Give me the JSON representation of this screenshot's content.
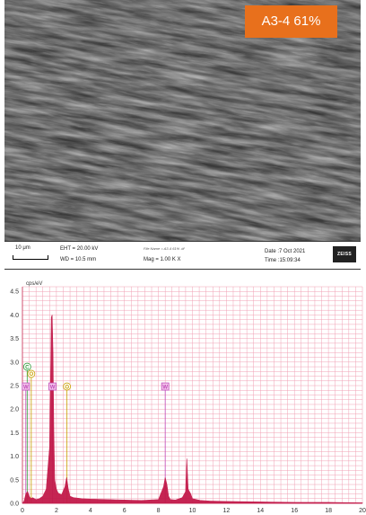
{
  "sample_label": "A3-4 61%",
  "info_bar": {
    "scale_bar": "10 μm",
    "eht": "EHT = 20.00 kV",
    "wd": "WD = 10.5 mm",
    "signal": "File Name = A3-4 61% .tif",
    "mag": "Mag =  1.00 K X",
    "date": "Date :7 Oct 2021",
    "time": "Time :15:09:34",
    "logo": "ZEISS"
  },
  "chart_data": {
    "type": "line",
    "title": "",
    "ylabel": "cps/eV",
    "xlabel": "",
    "xlim": [
      0,
      20
    ],
    "ylim": [
      0,
      4.6
    ],
    "grid": true,
    "xticks": [
      0,
      2,
      4,
      6,
      8,
      10,
      12,
      14,
      16,
      18,
      20
    ],
    "yticks": [
      0.0,
      0.5,
      1.0,
      1.5,
      2.0,
      2.5,
      3.0,
      3.5,
      4.0,
      4.5
    ],
    "spectrum": {
      "x": [
        0.0,
        0.1,
        0.2,
        0.3,
        0.4,
        0.5,
        0.6,
        0.8,
        1.0,
        1.2,
        1.4,
        1.6,
        1.7,
        1.75,
        1.8,
        1.85,
        1.9,
        2.0,
        2.1,
        2.3,
        2.5,
        2.6,
        2.7,
        2.8,
        3.0,
        3.5,
        4.0,
        5.0,
        6.0,
        7.0,
        8.0,
        8.3,
        8.4,
        8.5,
        8.6,
        8.7,
        9.0,
        9.4,
        9.6,
        9.67,
        9.75,
        9.9,
        10.0,
        10.5,
        11.0,
        12.0,
        14.0,
        16.0,
        18.0,
        20.0
      ],
      "y": [
        0.0,
        0.05,
        0.2,
        0.25,
        0.15,
        0.1,
        0.12,
        0.08,
        0.1,
        0.15,
        0.3,
        1.2,
        3.95,
        4.0,
        3.2,
        1.5,
        0.5,
        0.3,
        0.22,
        0.18,
        0.35,
        0.55,
        0.3,
        0.15,
        0.12,
        0.1,
        0.09,
        0.08,
        0.07,
        0.06,
        0.08,
        0.35,
        0.55,
        0.4,
        0.15,
        0.08,
        0.07,
        0.12,
        0.25,
        0.95,
        0.3,
        0.2,
        0.1,
        0.06,
        0.05,
        0.04,
        0.03,
        0.02,
        0.02,
        0.01
      ]
    },
    "element_markers": [
      {
        "symbol": "C",
        "x": 0.28,
        "y": 2.9,
        "color": "#2e9e3a"
      },
      {
        "symbol": "O",
        "x": 0.52,
        "y": 2.75,
        "color": "#c8a000"
      },
      {
        "symbol": "W",
        "x": 0.2,
        "y": 2.48,
        "color": "#c04ab8"
      },
      {
        "symbol": "W",
        "x": 1.77,
        "y": 2.48,
        "color": "#c04ab8"
      },
      {
        "symbol": "O",
        "x": 2.62,
        "y": 2.48,
        "color": "#c8a000"
      },
      {
        "symbol": "W",
        "x": 8.4,
        "y": 2.48,
        "color": "#c04ab8"
      }
    ],
    "colors": {
      "grid": "#f0a0b4",
      "spectrum_fill": "#c21a4a",
      "axes": "#d25070",
      "tick_text": "#333333"
    }
  }
}
